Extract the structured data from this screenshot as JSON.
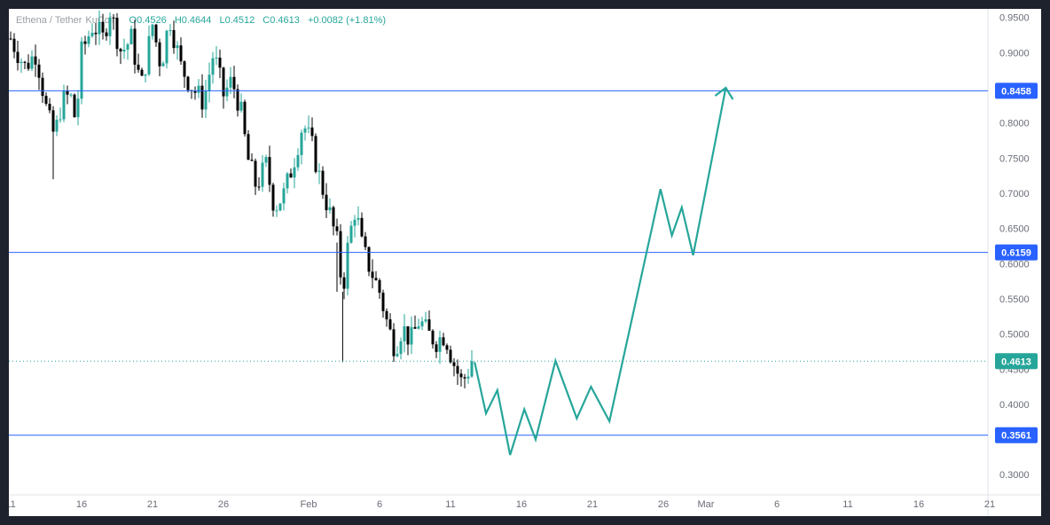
{
  "legend": {
    "symbol": "Ethena / Tether",
    "exchange": "KuCoin",
    "open": "O0.4526",
    "high": "H0.4644",
    "low": "L0.4512",
    "close": "C0.4613",
    "change": "+0.0082 (+1.81%)"
  },
  "colors": {
    "up": "#26a69a",
    "down": "#000000",
    "level": "#2962ff",
    "projection": "#26a69a",
    "background": "#ffffff",
    "frame": "#1e222d"
  },
  "chart_data": {
    "type": "candlestick",
    "y_axis": {
      "range": [
        0.265,
        0.9622
      ],
      "ticks": [
        "0.9500",
        "0.9000",
        "0.8500",
        "0.8000",
        "0.7500",
        "0.7000",
        "0.6500",
        "0.6000",
        "0.5500",
        "0.5000",
        "0.4500",
        "0.4000",
        "0.3500",
        "0.3000"
      ],
      "position": "right"
    },
    "x_axis": {
      "ticks": [
        {
          "label": "11",
          "day": 0
        },
        {
          "label": "16",
          "day": 5
        },
        {
          "label": "21",
          "day": 10
        },
        {
          "label": "26",
          "day": 15
        },
        {
          "label": "Feb",
          "day": 21
        },
        {
          "label": "6",
          "day": 26
        },
        {
          "label": "11",
          "day": 31
        },
        {
          "label": "16",
          "day": 36
        },
        {
          "label": "21",
          "day": 41
        },
        {
          "label": "26",
          "day": 46
        },
        {
          "label": "Mar",
          "day": 49
        },
        {
          "label": "6",
          "day": 54
        },
        {
          "label": "11",
          "day": 59
        },
        {
          "label": "16",
          "day": 64
        },
        {
          "label": "21",
          "day": 69
        }
      ]
    },
    "levels": [
      {
        "value": 0.8458,
        "label": "0.8458"
      },
      {
        "value": 0.6159,
        "label": "0.6159"
      },
      {
        "value": 0.3561,
        "label": "0.3561"
      }
    ],
    "last_price": {
      "value": 0.4613,
      "label": "0.4613"
    },
    "price_path": [
      {
        "day": 0.0,
        "price": 0.92
      },
      {
        "day": 1.0,
        "price": 0.88
      },
      {
        "day": 1.8,
        "price": 0.9
      },
      {
        "day": 2.6,
        "price": 0.81
      },
      {
        "day": 3.1,
        "price": 0.78
      },
      {
        "day": 3.6,
        "price": 0.83
      },
      {
        "day": 4.2,
        "price": 0.84
      },
      {
        "day": 4.6,
        "price": 0.8
      },
      {
        "day": 5.0,
        "price": 0.9
      },
      {
        "day": 5.8,
        "price": 0.94
      },
      {
        "day": 6.5,
        "price": 0.92
      },
      {
        "day": 7.0,
        "price": 0.96
      },
      {
        "day": 7.8,
        "price": 0.9
      },
      {
        "day": 8.5,
        "price": 0.92
      },
      {
        "day": 9.2,
        "price": 0.85
      },
      {
        "day": 10.0,
        "price": 0.94
      },
      {
        "day": 10.6,
        "price": 0.88
      },
      {
        "day": 11.2,
        "price": 0.95
      },
      {
        "day": 12.0,
        "price": 0.88
      },
      {
        "day": 12.8,
        "price": 0.85
      },
      {
        "day": 13.6,
        "price": 0.83
      },
      {
        "day": 14.3,
        "price": 0.9
      },
      {
        "day": 15.0,
        "price": 0.84
      },
      {
        "day": 15.6,
        "price": 0.86
      },
      {
        "day": 16.2,
        "price": 0.82
      },
      {
        "day": 16.7,
        "price": 0.75
      },
      {
        "day": 17.3,
        "price": 0.71
      },
      {
        "day": 18.0,
        "price": 0.74
      },
      {
        "day": 18.6,
        "price": 0.68
      },
      {
        "day": 19.3,
        "price": 0.7
      },
      {
        "day": 20.0,
        "price": 0.75
      },
      {
        "day": 20.6,
        "price": 0.8
      },
      {
        "day": 21.2,
        "price": 0.77
      },
      {
        "day": 21.8,
        "price": 0.72
      },
      {
        "day": 22.5,
        "price": 0.67
      },
      {
        "day": 23.0,
        "price": 0.63
      },
      {
        "day": 23.4,
        "price": 0.56
      },
      {
        "day": 23.8,
        "price": 0.63
      },
      {
        "day": 24.3,
        "price": 0.68
      },
      {
        "day": 24.8,
        "price": 0.62
      },
      {
        "day": 25.4,
        "price": 0.59
      },
      {
        "day": 26.0,
        "price": 0.56
      },
      {
        "day": 26.6,
        "price": 0.51
      },
      {
        "day": 27.1,
        "price": 0.48
      },
      {
        "day": 27.6,
        "price": 0.51
      },
      {
        "day": 28.2,
        "price": 0.49
      },
      {
        "day": 28.8,
        "price": 0.52
      },
      {
        "day": 29.4,
        "price": 0.5
      },
      {
        "day": 30.0,
        "price": 0.49
      },
      {
        "day": 30.6,
        "price": 0.5
      },
      {
        "day": 31.2,
        "price": 0.46
      },
      {
        "day": 31.8,
        "price": 0.43
      },
      {
        "day": 32.3,
        "price": 0.45
      },
      {
        "day": 32.7,
        "price": 0.4613
      }
    ],
    "projection_path": [
      {
        "day": 32.7,
        "price": 0.46
      },
      {
        "day": 33.5,
        "price": 0.387
      },
      {
        "day": 34.3,
        "price": 0.42
      },
      {
        "day": 35.2,
        "price": 0.328
      },
      {
        "day": 36.2,
        "price": 0.393
      },
      {
        "day": 37.0,
        "price": 0.35
      },
      {
        "day": 38.4,
        "price": 0.462
      },
      {
        "day": 39.9,
        "price": 0.38
      },
      {
        "day": 40.9,
        "price": 0.425
      },
      {
        "day": 42.2,
        "price": 0.376
      },
      {
        "day": 45.8,
        "price": 0.706
      },
      {
        "day": 46.6,
        "price": 0.64
      },
      {
        "day": 47.3,
        "price": 0.68
      },
      {
        "day": 48.1,
        "price": 0.612
      },
      {
        "day": 50.4,
        "price": 0.85
      }
    ]
  }
}
